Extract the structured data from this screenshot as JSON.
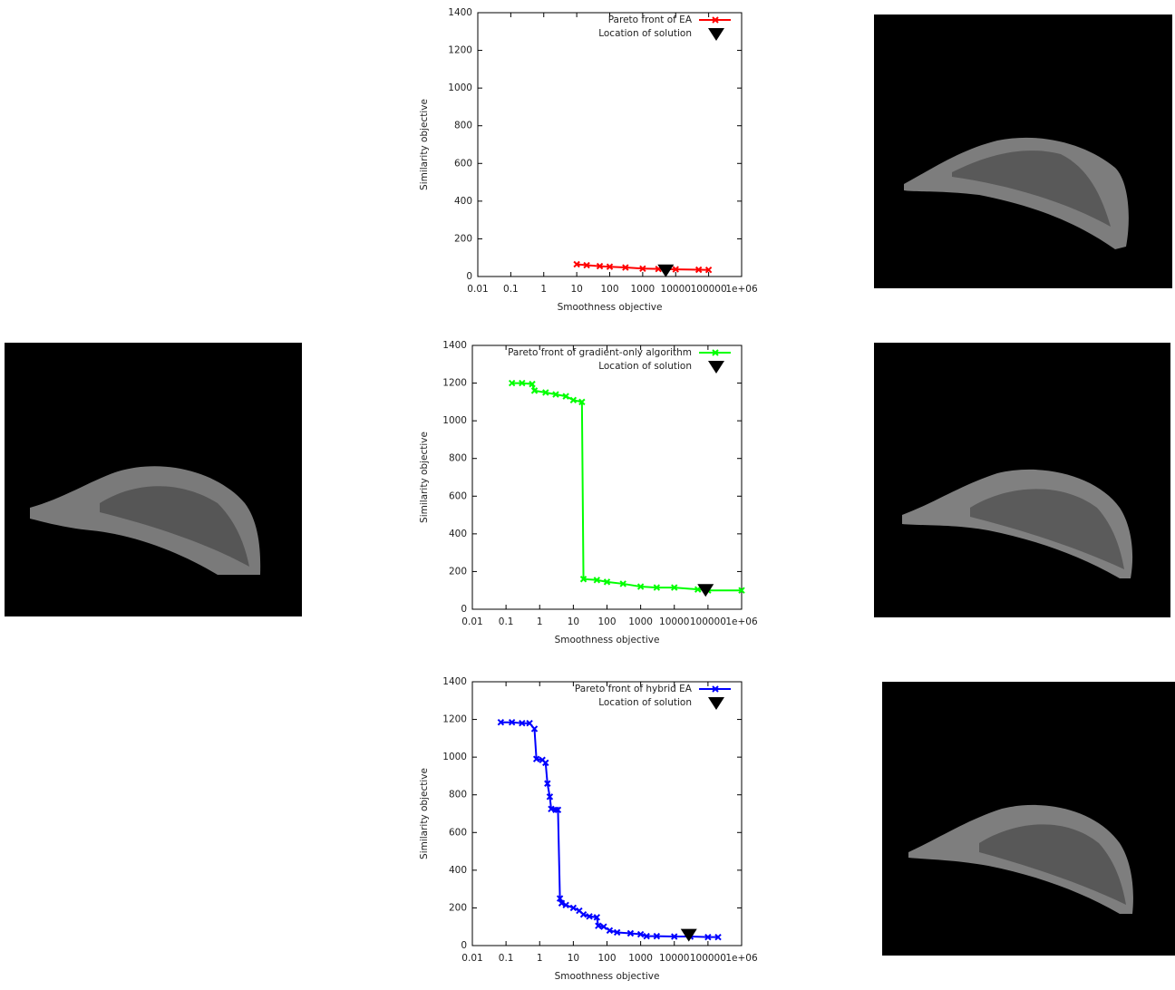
{
  "chart_data": [
    {
      "type": "line",
      "xscale": "log",
      "xlabel": "Smoothness objective",
      "ylabel": "Similarity objective",
      "xlim": [
        0.01,
        1000000
      ],
      "ylim": [
        0,
        1400
      ],
      "xticks": [
        0.01,
        0.1,
        1,
        10,
        100,
        1000,
        10000,
        100000,
        {
          "value": 1000000,
          "label": "1e+06"
        }
      ],
      "yticks": [
        0,
        200,
        400,
        600,
        800,
        1000,
        1200,
        1400
      ],
      "legend": "upper right",
      "series": [
        {
          "name": "Pareto front of EA",
          "color": "#ff0000",
          "marker": "x",
          "x": [
            10,
            20,
            50,
            100,
            300,
            1000,
            3000,
            10000,
            50000,
            100000
          ],
          "values": [
            65,
            60,
            55,
            52,
            48,
            42,
            40,
            38,
            36,
            35
          ]
        },
        {
          "name": "Location of solution",
          "color": "#000000",
          "marker": "triangle",
          "x": [
            5000
          ],
          "values": [
            30
          ]
        }
      ]
    },
    {
      "type": "line",
      "xscale": "log",
      "xlabel": "Smoothness objective",
      "ylabel": "Similarity objective",
      "xlim": [
        0.01,
        1000000
      ],
      "ylim": [
        0,
        1400
      ],
      "xticks": [
        0.01,
        0.1,
        1,
        10,
        100,
        1000,
        10000,
        100000,
        {
          "value": 1000000,
          "label": "1e+06"
        }
      ],
      "yticks": [
        0,
        200,
        400,
        600,
        800,
        1000,
        1200,
        1400
      ],
      "legend": "upper right",
      "series": [
        {
          "name": "Pareto front of gradient-only algorithm",
          "color": "#00ff00",
          "marker": "x",
          "x": [
            0.15,
            0.3,
            0.6,
            0.7,
            1.5,
            3,
            6,
            10,
            18,
            20,
            50,
            100,
            300,
            1000,
            3000,
            10000,
            50000,
            100000,
            1000000
          ],
          "values": [
            1200,
            1200,
            1195,
            1160,
            1150,
            1140,
            1130,
            1110,
            1100,
            160,
            155,
            145,
            135,
            120,
            115,
            115,
            105,
            100,
            100
          ]
        },
        {
          "name": "Location of solution",
          "color": "#000000",
          "marker": "triangle",
          "x": [
            85000
          ],
          "values": [
            100
          ]
        }
      ]
    },
    {
      "type": "line",
      "xscale": "log",
      "xlabel": "Smoothness objective",
      "ylabel": "Similarity objective",
      "xlim": [
        0.01,
        1000000
      ],
      "ylim": [
        0,
        1400
      ],
      "xticks": [
        0.01,
        0.1,
        1,
        10,
        100,
        1000,
        10000,
        100000,
        {
          "value": 1000000,
          "label": "1e+06"
        }
      ],
      "yticks": [
        0,
        200,
        400,
        600,
        800,
        1000,
        1200,
        1400
      ],
      "legend": "upper right",
      "series": [
        {
          "name": "Pareto front of hybrid EA",
          "color": "#0000ff",
          "marker": "x",
          "x": [
            0.07,
            0.15,
            0.3,
            0.5,
            0.7,
            0.8,
            1.2,
            1.5,
            1.7,
            2,
            2.2,
            3,
            3.5,
            4,
            4.5,
            6,
            10,
            15,
            20,
            30,
            50,
            55,
            80,
            120,
            200,
            500,
            1000,
            1500,
            3000,
            10000,
            30000,
            100000,
            200000
          ],
          "values": [
            1185,
            1185,
            1180,
            1180,
            1150,
            990,
            985,
            970,
            860,
            790,
            725,
            720,
            720,
            250,
            225,
            215,
            200,
            185,
            165,
            155,
            150,
            105,
            100,
            80,
            70,
            65,
            60,
            50,
            50,
            48,
            48,
            45,
            45
          ]
        },
        {
          "name": "Location of solution",
          "color": "#000000",
          "marker": "triangle",
          "x": [
            27000
          ],
          "values": [
            55
          ]
        }
      ]
    }
  ]
}
